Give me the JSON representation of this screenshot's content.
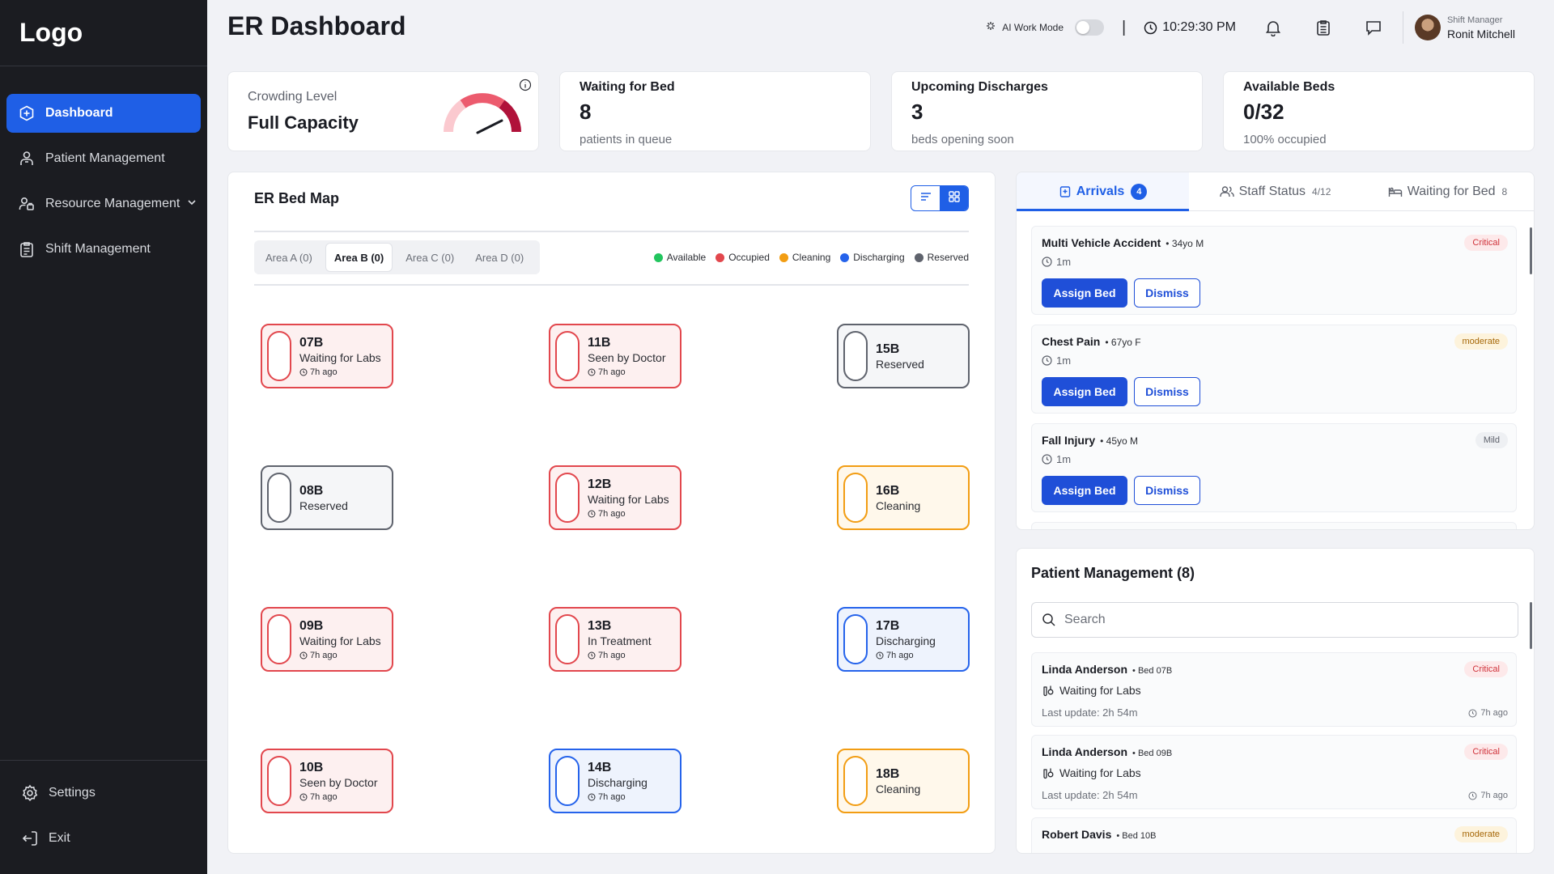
{
  "sidebar": {
    "logo": "Logo",
    "items": [
      {
        "label": "Dashboard",
        "icon": "plus-circle-icon"
      },
      {
        "label": "Patient Management",
        "icon": "person-icon"
      },
      {
        "label": "Resource Management",
        "icon": "resource-icon"
      },
      {
        "label": "Shift Management",
        "icon": "clipboard-icon"
      }
    ],
    "bottom": [
      {
        "label": "Settings",
        "icon": "gear-icon"
      },
      {
        "label": "Exit",
        "icon": "exit-icon"
      }
    ]
  },
  "header": {
    "title": "ER Dashboard",
    "ai_mode_label": "AI Work Mode",
    "ai_mode_on": false,
    "separator": "|",
    "time": "10:29:30 PM",
    "user_role": "Shift Manager",
    "user_name": "Ronit Mitchell"
  },
  "stats": {
    "crowding": {
      "label": "Crowding Level",
      "value": "Full Capacity",
      "level": 0.85
    },
    "waiting": {
      "label": "Waiting for Bed",
      "value": "8",
      "sub": "patients in queue"
    },
    "discharges": {
      "label": "Upcoming Discharges",
      "value": "3",
      "sub": "beds opening soon"
    },
    "available": {
      "label": "Available Beds",
      "value": "0/32",
      "sub": "100% occupied"
    }
  },
  "bedmap": {
    "title": "ER Bed Map",
    "areas": [
      "Area A (0)",
      "Area B (0)",
      "Area C (0)",
      "Area D (0)"
    ],
    "active_area": 1,
    "legend": [
      {
        "label": "Available",
        "color": "#22c55e"
      },
      {
        "label": "Occupied",
        "color": "#e2474d"
      },
      {
        "label": "Cleaning",
        "color": "#f29d13"
      },
      {
        "label": "Discharging",
        "color": "#2563eb"
      },
      {
        "label": "Reserved",
        "color": "#5f636d"
      }
    ],
    "beds": [
      {
        "id": "07B",
        "status": "Waiting for Labs",
        "time": "7h ago",
        "state": "occupied"
      },
      {
        "id": "11B",
        "status": "Seen by Doctor",
        "time": "7h ago",
        "state": "occupied"
      },
      {
        "id": "15B",
        "status": "Reserved",
        "time": "",
        "state": "reserved"
      },
      {
        "id": "08B",
        "status": "Reserved",
        "time": "",
        "state": "reserved"
      },
      {
        "id": "12B",
        "status": "Waiting for Labs",
        "time": "7h ago",
        "state": "occupied"
      },
      {
        "id": "16B",
        "status": "Cleaning",
        "time": "",
        "state": "cleaning"
      },
      {
        "id": "09B",
        "status": "Waiting for Labs",
        "time": "7h ago",
        "state": "occupied"
      },
      {
        "id": "13B",
        "status": "In Treatment",
        "time": "7h ago",
        "state": "occupied"
      },
      {
        "id": "17B",
        "status": "Discharging",
        "time": "7h ago",
        "state": "discharging"
      },
      {
        "id": "10B",
        "status": "Seen by Doctor",
        "time": "7h ago",
        "state": "occupied"
      },
      {
        "id": "14B",
        "status": "Discharging",
        "time": "7h ago",
        "state": "discharging"
      },
      {
        "id": "18B",
        "status": "Cleaning",
        "time": "",
        "state": "cleaning"
      }
    ]
  },
  "panel": {
    "tabs": [
      {
        "label": "Arrivals",
        "count": "4"
      },
      {
        "label": "Staff Status",
        "count": "4/12"
      },
      {
        "label": "Waiting for Bed",
        "count": "8"
      }
    ],
    "assign_label": "Assign Bed",
    "dismiss_label": "Dismiss",
    "arrivals": [
      {
        "title": "Multi Vehicle Accident",
        "meta": "• 34yo M",
        "time": "1m",
        "severity": "Critical",
        "sev_class": "critical"
      },
      {
        "title": "Chest Pain",
        "meta": "• 67yo F",
        "time": "1m",
        "severity": "moderate",
        "sev_class": "moderate"
      },
      {
        "title": "Fall Injury",
        "meta": "• 45yo M",
        "time": "1m",
        "severity": "Mild",
        "sev_class": "mild"
      }
    ]
  },
  "patients": {
    "title": "Patient Management (8)",
    "search_placeholder": "Search",
    "rows": [
      {
        "name": "Linda Anderson",
        "bed": "• Bed 07B",
        "status": "Waiting for Labs",
        "updated": "Last update: 2h 54m",
        "ago": "7h ago",
        "severity": "Critical",
        "sev_class": "critical"
      },
      {
        "name": "Linda Anderson",
        "bed": "• Bed 09B",
        "status": "Waiting for Labs",
        "updated": "Last update: 2h 54m",
        "ago": "7h ago",
        "severity": "Critical",
        "sev_class": "critical"
      },
      {
        "name": "Robert Davis",
        "bed": "• Bed 10B",
        "status": "",
        "updated": "",
        "ago": "",
        "severity": "moderate",
        "sev_class": "moderate"
      }
    ]
  }
}
